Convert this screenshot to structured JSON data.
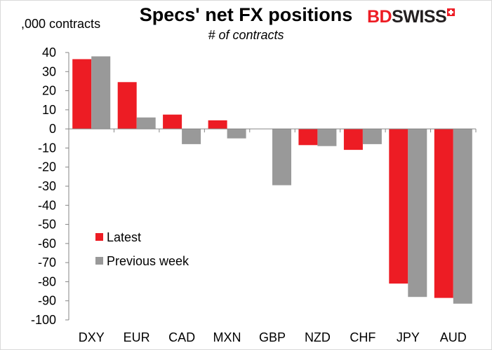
{
  "brand": {
    "part1": "BD",
    "part2": "SWISS"
  },
  "chart_data": {
    "type": "bar",
    "title": "Specs' net FX positions",
    "subtitle": "# of contracts",
    "unit_label": ",000 contracts",
    "xlabel": "",
    "ylabel": "",
    "categories": [
      "DXY",
      "EUR",
      "CAD",
      "MXN",
      "GBP",
      "NZD",
      "CHF",
      "JPY",
      "AUD"
    ],
    "series": [
      {
        "name": "Latest",
        "color": "#ed1c24",
        "values": [
          36.5,
          24.5,
          7.5,
          4.5,
          0,
          -8.5,
          -11,
          -81,
          -88.5
        ]
      },
      {
        "name": "Previous week",
        "color": "#999999",
        "values": [
          38,
          6,
          -8,
          -5,
          -29.5,
          -9,
          -8,
          -88,
          -91.5
        ]
      }
    ],
    "ylim": [
      -100,
      40
    ],
    "yticks": [
      40,
      30,
      20,
      10,
      0,
      -10,
      -20,
      -30,
      -40,
      -50,
      -60,
      -70,
      -80,
      -90,
      -100
    ],
    "grid": false,
    "legend_position": "lower-left"
  }
}
